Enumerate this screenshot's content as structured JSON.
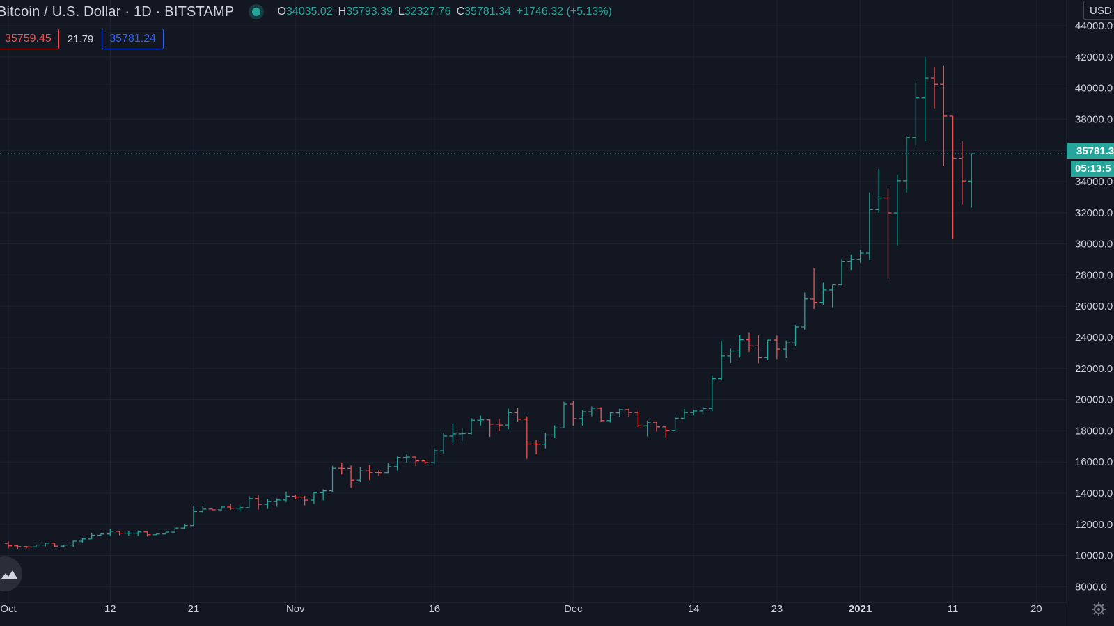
{
  "header": {
    "symbol_title": "Bitcoin / U.S. Dollar · 1D · BITSTAMP",
    "ohlc": {
      "open_key": "O",
      "open": "34035.02",
      "high_key": "H",
      "high": "35793.39",
      "low_key": "L",
      "low": "32327.76",
      "close_key": "C",
      "close": "35781.34",
      "change": "+1746.32 (+5.13%)"
    },
    "sell_price": "35759.45",
    "spread": "21.79",
    "buy_price": "35781.24",
    "currency": "USD",
    "countdown": "05:13:5",
    "last_price_label": "35781.3"
  },
  "colors": {
    "background": "#131722",
    "up": "#26a69a",
    "down": "#ef5350",
    "grid": "#1e222d",
    "text": "#d1d4dc"
  },
  "icons": {
    "settings": "gear-icon",
    "logo": "tradingview-logo-icon",
    "live": "live-dot-icon"
  },
  "chart_data": {
    "type": "ohlc",
    "title": "Bitcoin / U.S. Dollar · 1D · BITSTAMP",
    "y_axis_position": "right",
    "ylim": [
      7000,
      45000
    ],
    "yticks": [
      "8000.0",
      "10000.0",
      "12000.0",
      "14000.0",
      "16000.0",
      "18000.0",
      "20000.0",
      "22000.0",
      "24000.0",
      "26000.0",
      "28000.0",
      "30000.0",
      "32000.0",
      "34000.0",
      "36000.0",
      "38000.0",
      "40000.0",
      "42000.0",
      "44000.0"
    ],
    "xticks": [
      {
        "label": "Oct",
        "date": "2020-10-01",
        "bold": false
      },
      {
        "label": "12",
        "date": "2020-10-12",
        "bold": false
      },
      {
        "label": "21",
        "date": "2020-10-21",
        "bold": false
      },
      {
        "label": "Nov",
        "date": "2020-11-01",
        "bold": false
      },
      {
        "label": "16",
        "date": "2020-11-16",
        "bold": false
      },
      {
        "label": "Dec",
        "date": "2020-12-01",
        "bold": false
      },
      {
        "label": "14",
        "date": "2020-12-14",
        "bold": false
      },
      {
        "label": "23",
        "date": "2020-12-23",
        "bold": false
      },
      {
        "label": "2021",
        "date": "2021-01-01",
        "bold": true
      },
      {
        "label": "11",
        "date": "2021-01-11",
        "bold": false
      },
      {
        "label": "20",
        "date": "2021-01-20",
        "bold": false
      }
    ],
    "last_price": 35781.34,
    "grid": true,
    "candles": [
      [
        "2020-10-01",
        10780,
        10900,
        10450,
        10620
      ],
      [
        "2020-10-02",
        10620,
        10660,
        10380,
        10570
      ],
      [
        "2020-10-03",
        10570,
        10600,
        10490,
        10550
      ],
      [
        "2020-10-04",
        10550,
        10700,
        10520,
        10670
      ],
      [
        "2020-10-05",
        10670,
        10800,
        10590,
        10790
      ],
      [
        "2020-10-06",
        10790,
        10800,
        10560,
        10600
      ],
      [
        "2020-10-07",
        10600,
        10680,
        10530,
        10670
      ],
      [
        "2020-10-08",
        10670,
        10950,
        10550,
        10920
      ],
      [
        "2020-10-09",
        10920,
        11100,
        10830,
        11060
      ],
      [
        "2020-10-10",
        11060,
        11450,
        11060,
        11300
      ],
      [
        "2020-10-11",
        11300,
        11430,
        11280,
        11380
      ],
      [
        "2020-10-12",
        11380,
        11710,
        11250,
        11550
      ],
      [
        "2020-10-13",
        11550,
        11560,
        11300,
        11430
      ],
      [
        "2020-10-14",
        11430,
        11550,
        11280,
        11430
      ],
      [
        "2020-10-15",
        11430,
        11600,
        11250,
        11510
      ],
      [
        "2020-10-16",
        11510,
        11540,
        11220,
        11330
      ],
      [
        "2020-10-17",
        11330,
        11400,
        11310,
        11380
      ],
      [
        "2020-10-18",
        11380,
        11500,
        11360,
        11500
      ],
      [
        "2020-10-19",
        11500,
        11800,
        11410,
        11760
      ],
      [
        "2020-10-20",
        11760,
        12000,
        11700,
        11920
      ],
      [
        "2020-10-21",
        11920,
        13200,
        11900,
        12820
      ],
      [
        "2020-10-22",
        12820,
        13200,
        12720,
        12980
      ],
      [
        "2020-10-23",
        12980,
        13020,
        12900,
        12930
      ],
      [
        "2020-10-24",
        12930,
        13150,
        12880,
        13110
      ],
      [
        "2020-10-25",
        13110,
        13330,
        12920,
        13030
      ],
      [
        "2020-10-26",
        13030,
        13230,
        12800,
        13070
      ],
      [
        "2020-10-27",
        13070,
        13800,
        13030,
        13650
      ],
      [
        "2020-10-28",
        13650,
        13850,
        12950,
        13280
      ],
      [
        "2020-10-29",
        13280,
        13620,
        12990,
        13460
      ],
      [
        "2020-10-30",
        13460,
        13660,
        13130,
        13560
      ],
      [
        "2020-10-31",
        13560,
        14100,
        13430,
        13800
      ],
      [
        "2020-11-01",
        13800,
        13900,
        13620,
        13750
      ],
      [
        "2020-11-02",
        13750,
        13830,
        13220,
        13550
      ],
      [
        "2020-11-03",
        13550,
        14060,
        13310,
        14030
      ],
      [
        "2020-11-04",
        14030,
        14250,
        13540,
        14150
      ],
      [
        "2020-11-05",
        14150,
        15750,
        14090,
        15600
      ],
      [
        "2020-11-06",
        15600,
        15970,
        15190,
        15590
      ],
      [
        "2020-11-07",
        15590,
        15770,
        14350,
        14840
      ],
      [
        "2020-11-08",
        14840,
        15650,
        14710,
        15480
      ],
      [
        "2020-11-09",
        15480,
        15800,
        14840,
        15330
      ],
      [
        "2020-11-10",
        15330,
        15460,
        15090,
        15310
      ],
      [
        "2020-11-11",
        15310,
        15950,
        15280,
        15700
      ],
      [
        "2020-11-12",
        15700,
        16350,
        15450,
        16290
      ],
      [
        "2020-11-13",
        16290,
        16490,
        15970,
        16320
      ],
      [
        "2020-11-14",
        16320,
        16330,
        15750,
        16070
      ],
      [
        "2020-11-15",
        16070,
        16140,
        15860,
        15960
      ],
      [
        "2020-11-16",
        15960,
        16880,
        15880,
        16720
      ],
      [
        "2020-11-17",
        16720,
        17860,
        16550,
        17660
      ],
      [
        "2020-11-18",
        17660,
        18480,
        17220,
        17800
      ],
      [
        "2020-11-19",
        17800,
        18150,
        17340,
        17820
      ],
      [
        "2020-11-20",
        17820,
        18810,
        17760,
        18680
      ],
      [
        "2020-11-21",
        18680,
        18970,
        18340,
        18700
      ],
      [
        "2020-11-22",
        18700,
        18760,
        17620,
        18430
      ],
      [
        "2020-11-23",
        18430,
        18760,
        18000,
        18370
      ],
      [
        "2020-11-24",
        18370,
        19420,
        18100,
        19160
      ],
      [
        "2020-11-25",
        19160,
        19490,
        18600,
        18740
      ],
      [
        "2020-11-26",
        18740,
        18920,
        16200,
        17150
      ],
      [
        "2020-11-27",
        17150,
        17420,
        16500,
        17140
      ],
      [
        "2020-11-28",
        17140,
        17890,
        16870,
        17730
      ],
      [
        "2020-11-29",
        17730,
        18350,
        17540,
        18180
      ],
      [
        "2020-11-30",
        18180,
        19860,
        18180,
        19710
      ],
      [
        "2020-12-01",
        19710,
        19920,
        18330,
        18780
      ],
      [
        "2020-12-02",
        18780,
        19330,
        18340,
        19220
      ],
      [
        "2020-12-03",
        19220,
        19560,
        18930,
        19450
      ],
      [
        "2020-12-04",
        19450,
        19510,
        18590,
        18650
      ],
      [
        "2020-12-05",
        18650,
        19180,
        18530,
        19150
      ],
      [
        "2020-12-06",
        19150,
        19420,
        18880,
        19360
      ],
      [
        "2020-12-07",
        19360,
        19420,
        18900,
        19170
      ],
      [
        "2020-12-08",
        19170,
        19300,
        18230,
        18320
      ],
      [
        "2020-12-09",
        18320,
        18650,
        17640,
        18550
      ],
      [
        "2020-12-10",
        18550,
        18580,
        17950,
        18250
      ],
      [
        "2020-12-11",
        18250,
        18280,
        17580,
        18030
      ],
      [
        "2020-12-12",
        18030,
        18930,
        18000,
        18800
      ],
      [
        "2020-12-13",
        18800,
        19400,
        18720,
        19170
      ],
      [
        "2020-12-14",
        19170,
        19340,
        19000,
        19270
      ],
      [
        "2020-12-15",
        19270,
        19560,
        19060,
        19430
      ],
      [
        "2020-12-16",
        19430,
        21560,
        19270,
        21340
      ],
      [
        "2020-12-17",
        21340,
        23770,
        21230,
        22800
      ],
      [
        "2020-12-18",
        22800,
        23280,
        22350,
        23130
      ],
      [
        "2020-12-19",
        23130,
        24170,
        22750,
        23840
      ],
      [
        "2020-12-20",
        23840,
        24290,
        23070,
        23450
      ],
      [
        "2020-12-21",
        23450,
        24130,
        22330,
        22720
      ],
      [
        "2020-12-22",
        22720,
        23830,
        22530,
        23820
      ],
      [
        "2020-12-23",
        23820,
        24120,
        22600,
        23240
      ],
      [
        "2020-12-24",
        23240,
        23790,
        22700,
        23700
      ],
      [
        "2020-12-25",
        23700,
        24790,
        23450,
        24670
      ],
      [
        "2020-12-26",
        24670,
        26880,
        24500,
        26460
      ],
      [
        "2020-12-27",
        26460,
        28420,
        25830,
        26250
      ],
      [
        "2020-12-28",
        26250,
        27500,
        26100,
        27040
      ],
      [
        "2020-12-29",
        27040,
        27370,
        25890,
        27370
      ],
      [
        "2020-12-30",
        27370,
        28990,
        27340,
        28880
      ],
      [
        "2020-12-31",
        28880,
        29320,
        28320,
        28990
      ],
      [
        "2021-01-01",
        28990,
        29600,
        28790,
        29400
      ],
      [
        "2021-01-02",
        29400,
        33300,
        28950,
        32200
      ],
      [
        "2021-01-03",
        32200,
        34810,
        32000,
        32950
      ],
      [
        "2021-01-04",
        32950,
        33600,
        27740,
        31990
      ],
      [
        "2021-01-05",
        31990,
        34440,
        29900,
        34050
      ],
      [
        "2021-01-06",
        34050,
        36950,
        33300,
        36820
      ],
      [
        "2021-01-07",
        36820,
        40360,
        36300,
        39370
      ],
      [
        "2021-01-08",
        39370,
        42000,
        36600,
        40650
      ],
      [
        "2021-01-09",
        40650,
        41360,
        38700,
        40240
      ],
      [
        "2021-01-10",
        40240,
        41420,
        35000,
        38200
      ],
      [
        "2021-01-11",
        38200,
        38200,
        30300,
        35490
      ],
      [
        "2021-01-12",
        35490,
        36600,
        32500,
        34035.02
      ],
      [
        "2021-01-13",
        34035.02,
        35793.39,
        32327.76,
        35781.34
      ]
    ]
  }
}
